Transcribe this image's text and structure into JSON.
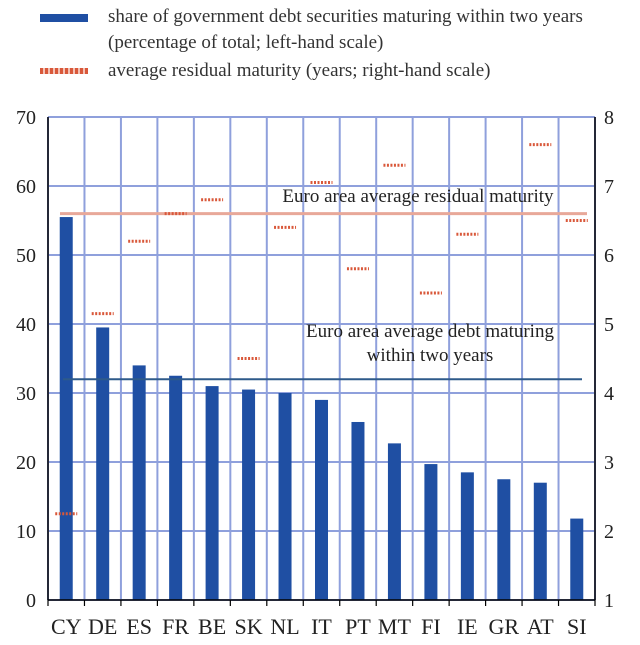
{
  "legend": {
    "bar_label": "share of government debt securities maturing within two years (percentage of total; left-hand scale)",
    "avg_label": "average residual maturity (years; right-hand scale)"
  },
  "colors": {
    "bar": "#1f4fa3",
    "bar_dark": "#0f3a86",
    "avg_marker": "#d9583a",
    "ea_maturity_line": "#e8a899",
    "ea_debt_line": "#2e5a8a",
    "grid": "#8fa0dc",
    "axis": "#000000"
  },
  "chart_data": {
    "type": "bar",
    "categories": [
      "CY",
      "DE",
      "ES",
      "FR",
      "BE",
      "SK",
      "NL",
      "IT",
      "PT",
      "MT",
      "FI",
      "IE",
      "GR",
      "AT",
      "SI"
    ],
    "series": [
      {
        "name": "share of government debt securities maturing within two years (percentage of total; left-hand scale)",
        "axis": "left",
        "values": [
          55.5,
          39.5,
          34,
          32.5,
          31,
          30.5,
          30,
          29,
          25.8,
          22.7,
          19.7,
          18.5,
          17.5,
          17,
          11.8
        ]
      },
      {
        "name": "average residual maturity (years; right-hand scale)",
        "axis": "right",
        "marker": "dash",
        "values": [
          2.25,
          5.15,
          6.2,
          6.6,
          6.8,
          4.5,
          6.4,
          7.05,
          5.8,
          7.3,
          5.45,
          6.3,
          null,
          7.6,
          6.5
        ]
      }
    ],
    "reference_lines": [
      {
        "label": "Euro area average residual maturity",
        "axis": "right",
        "value": 6.6
      },
      {
        "label": "Euro area average debt maturing within two years",
        "axis": "left",
        "value": 32
      }
    ],
    "ylim_left": [
      0,
      70
    ],
    "yticks_left": [
      0,
      10,
      20,
      30,
      40,
      50,
      60,
      70
    ],
    "ylim_right": [
      1,
      8
    ],
    "yticks_right": [
      1,
      2,
      3,
      4,
      5,
      6,
      7,
      8
    ],
    "grid": true,
    "legend_position": "top"
  }
}
